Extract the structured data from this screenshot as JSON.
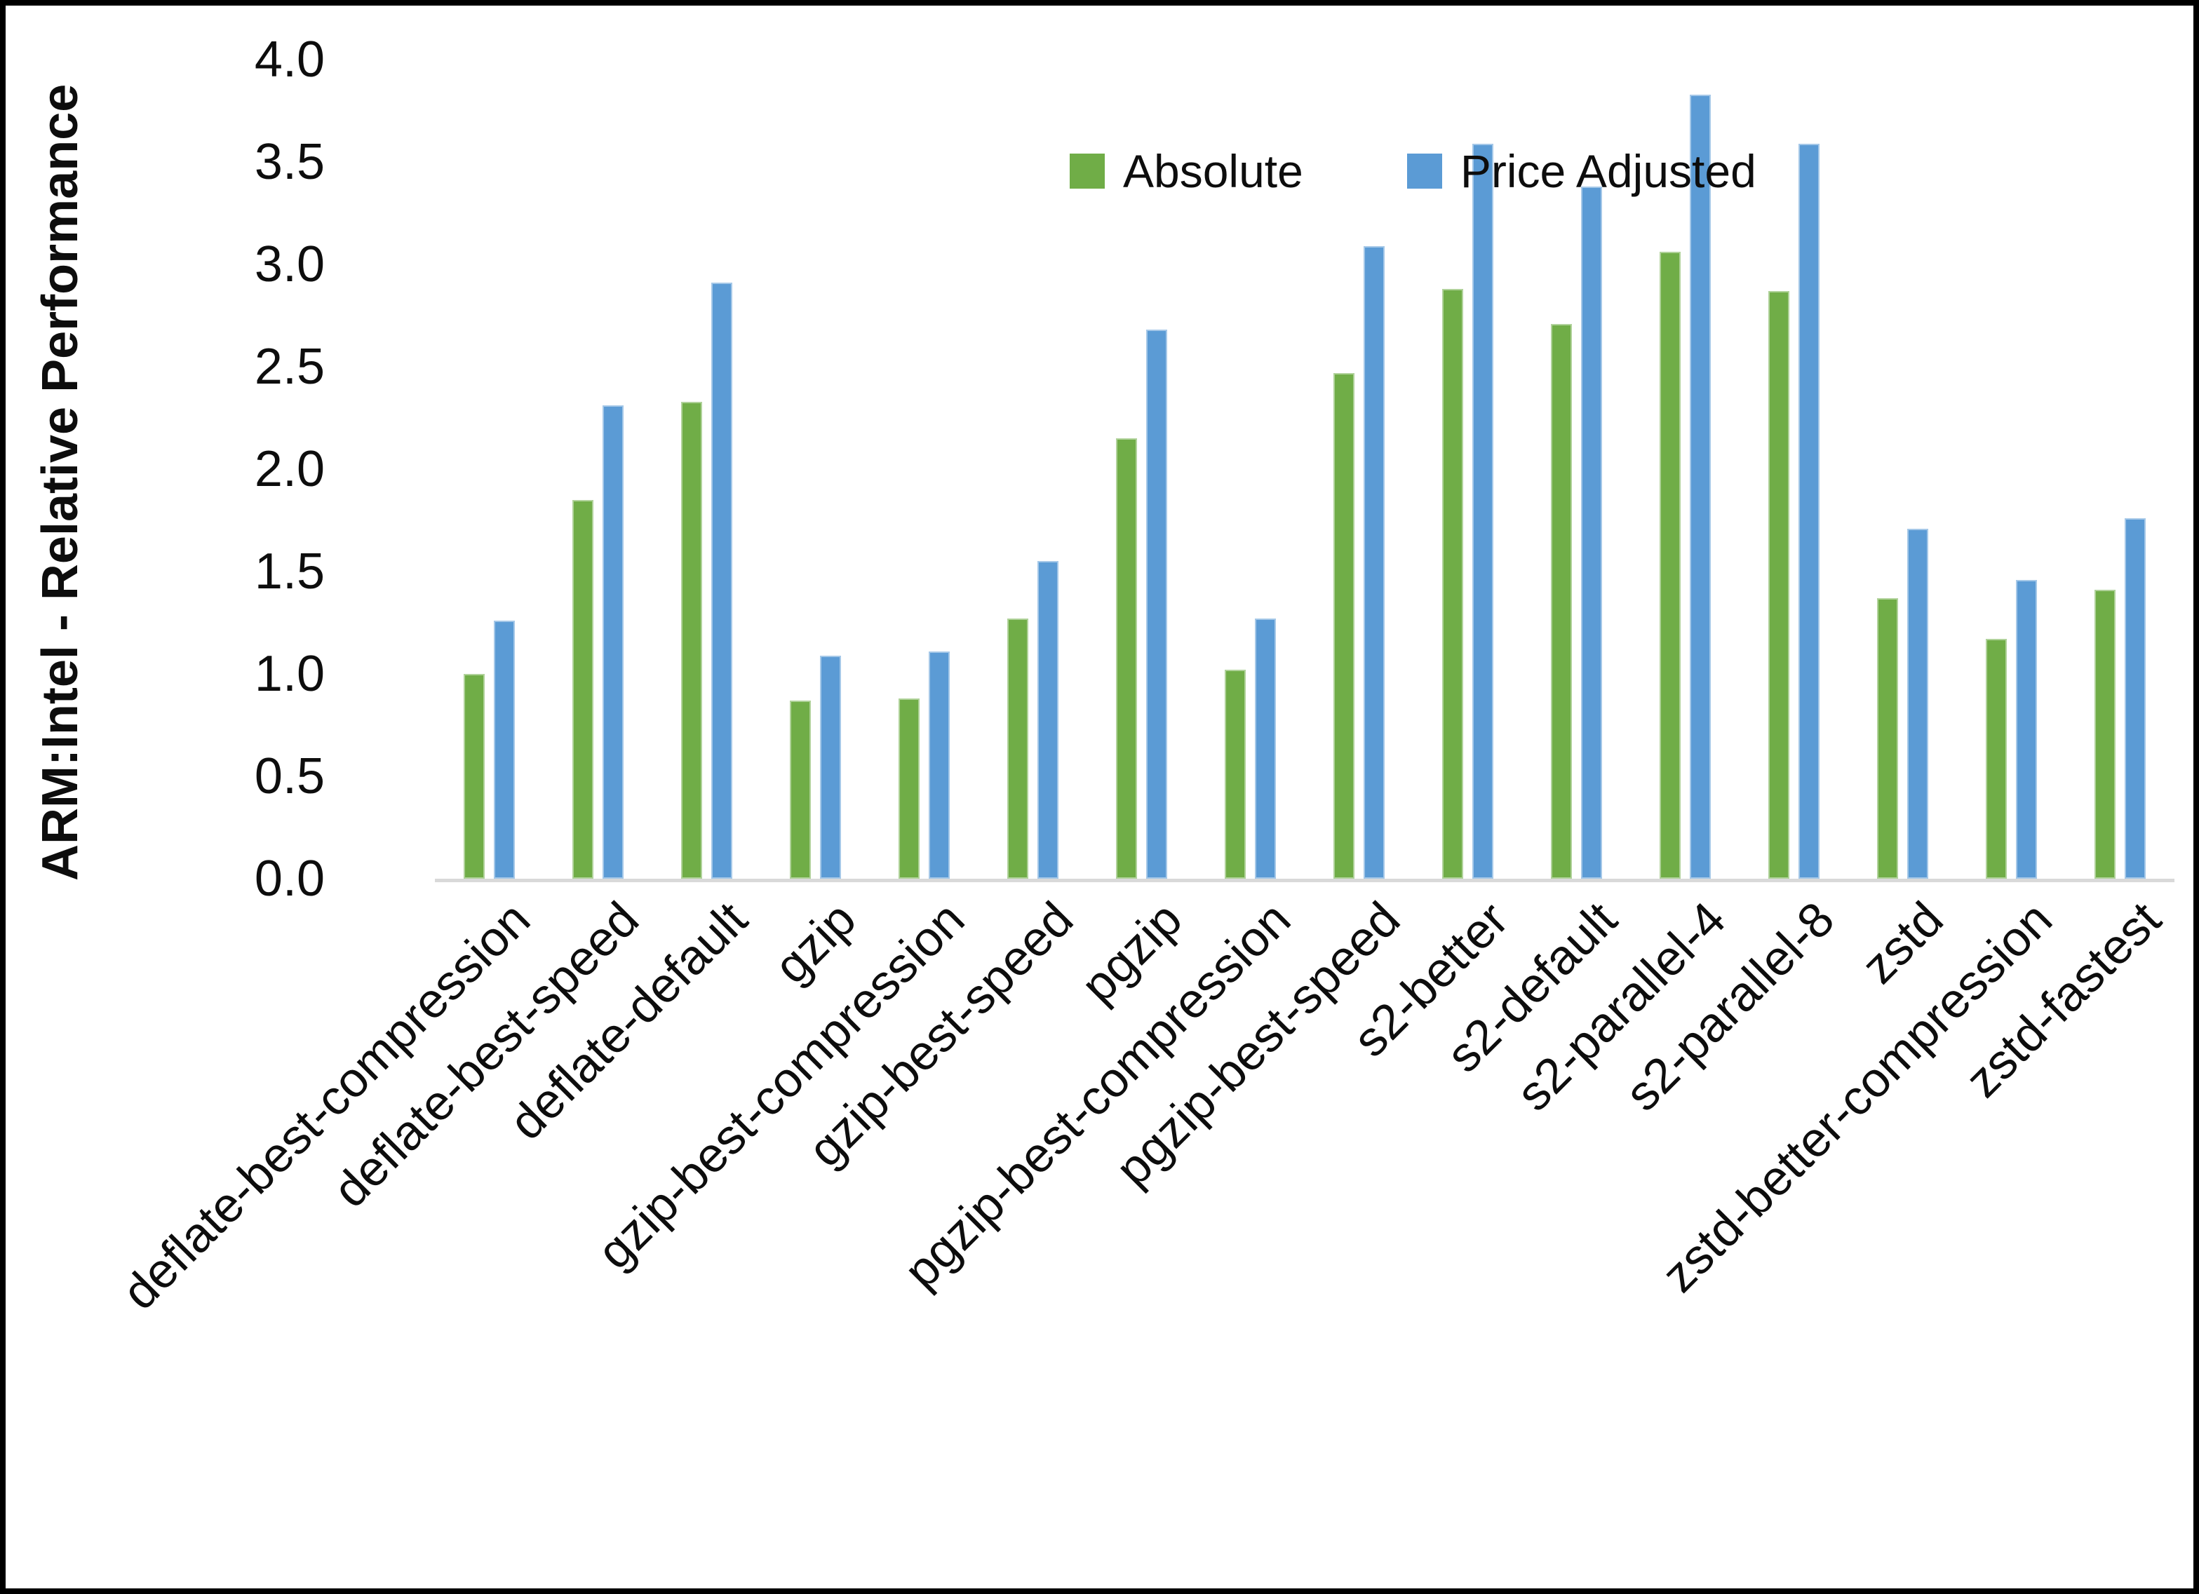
{
  "chart_data": {
    "type": "bar",
    "title": "",
    "xlabel": "",
    "ylabel": "ARM:Intel - Relative Performance",
    "ylim": [
      0.0,
      4.0
    ],
    "ytick_step": 0.5,
    "yticks": [
      "4.0",
      "3.5",
      "3.0",
      "2.5",
      "2.0",
      "1.5",
      "1.0",
      "0.5",
      "0.0"
    ],
    "grid": false,
    "legend_position": "top-center-inside",
    "categories": [
      "deflate-best-compression",
      "deflate-best-speed",
      "deflate-default",
      "gzip",
      "gzip-best-compression",
      "gzip-best-speed",
      "pgzip",
      "pgzip-best-compression",
      "pgzip-best-speed",
      "s2-better",
      "s2-default",
      "s2-parallel-4",
      "s2-parallel-8",
      "zstd",
      "zstd-better-compression",
      "zstd-fastest"
    ],
    "series": [
      {
        "name": "Absolute",
        "color": "#70AD47",
        "values": [
          1.0,
          1.85,
          2.33,
          0.87,
          0.88,
          1.27,
          2.15,
          1.02,
          2.47,
          2.88,
          2.71,
          3.06,
          2.87,
          1.37,
          1.17,
          1.41
        ]
      },
      {
        "name": "Price Adjusted",
        "color": "#5B9BD5",
        "values": [
          1.26,
          2.31,
          2.91,
          1.09,
          1.11,
          1.55,
          2.68,
          1.27,
          3.09,
          3.59,
          3.38,
          3.83,
          3.59,
          1.71,
          1.46,
          1.76
        ]
      }
    ]
  },
  "colors": {
    "axis_line": "#D9D9D9",
    "text": "#0d0d0d",
    "frame": "#000000",
    "background": "#FFFFFF"
  }
}
